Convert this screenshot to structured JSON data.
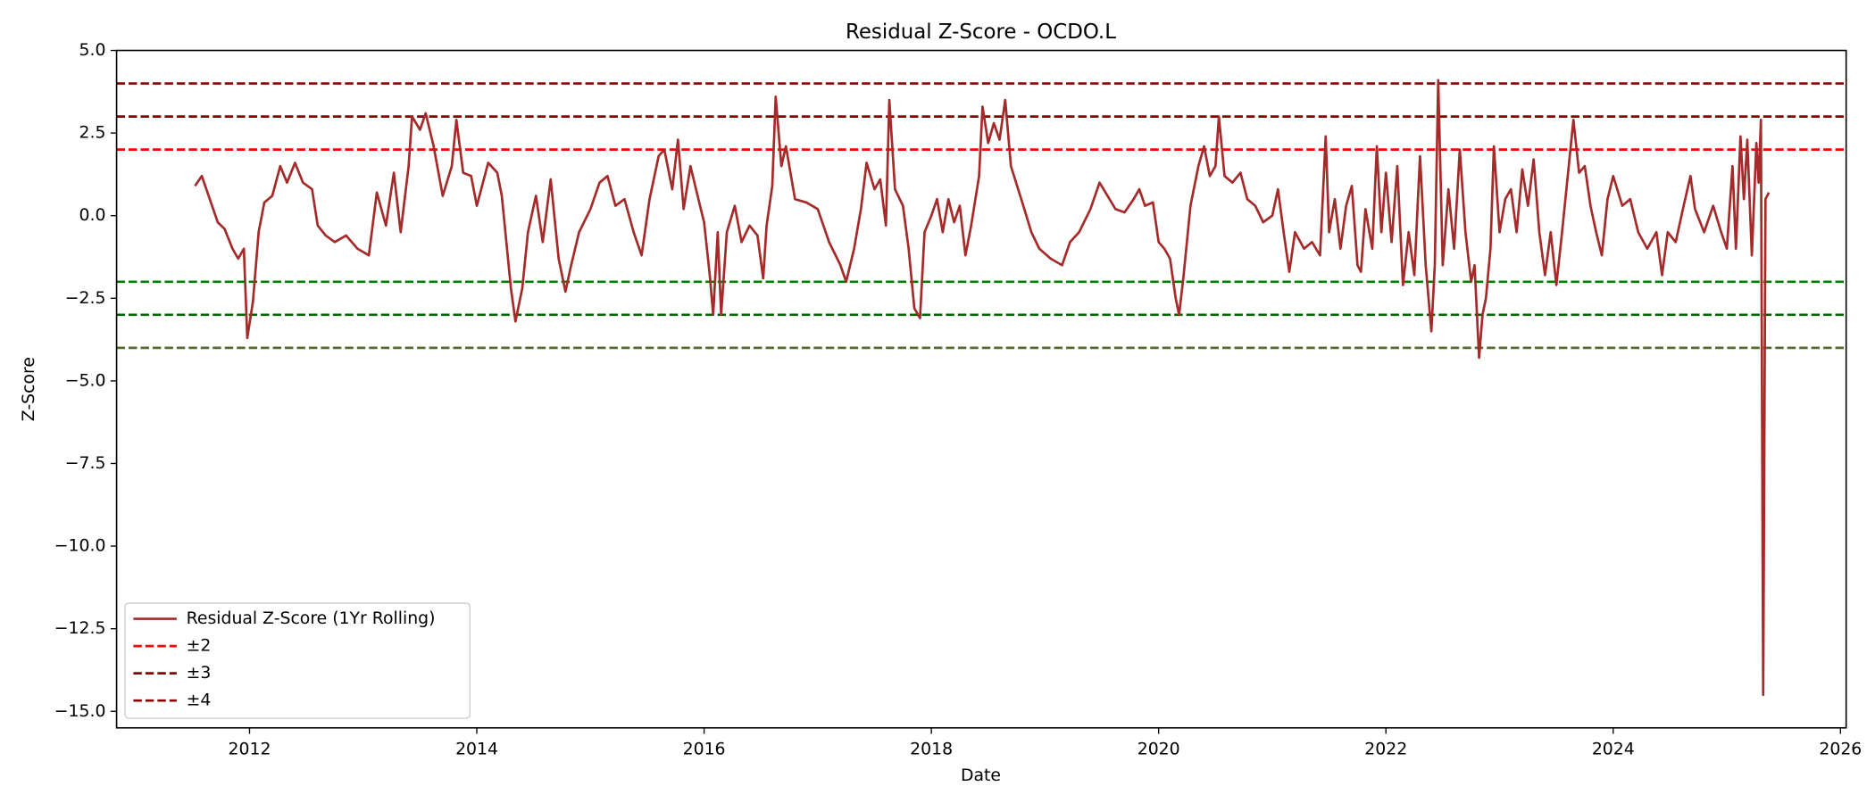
{
  "chart_data": {
    "type": "line",
    "title": "Residual Z-Score - OCDO.L",
    "xlabel": "Date",
    "ylabel": "Z-Score",
    "xlim": [
      2010.83,
      2026.05
    ],
    "xticks": [
      2012,
      2014,
      2016,
      2018,
      2020,
      2022,
      2024,
      2026
    ],
    "ylim": [
      -15.5,
      5
    ],
    "yticks": [
      {
        "value": 5,
        "label": "5.0"
      },
      {
        "value": 2.5,
        "label": "2.5"
      },
      {
        "value": 0,
        "label": "0.0"
      },
      {
        "value": -2.5,
        "label": "−2.5"
      },
      {
        "value": -5,
        "label": "−5.0"
      },
      {
        "value": -7.5,
        "label": "−7.5"
      },
      {
        "value": -10,
        "label": "−10.0"
      },
      {
        "value": -12.5,
        "label": "−12.5"
      },
      {
        "value": -15,
        "label": "−15.0"
      }
    ],
    "grid": false,
    "legend": "lower left",
    "x": [
      2011.52,
      2011.58,
      2011.65,
      2011.72,
      2011.78,
      2011.85,
      2011.9,
      2011.95,
      2011.98,
      2012.03,
      2012.08,
      2012.13,
      2012.2,
      2012.27,
      2012.33,
      2012.4,
      2012.47,
      2012.55,
      2012.6,
      2012.67,
      2012.75,
      2012.85,
      2012.95,
      2013.05,
      2013.12,
      2013.2,
      2013.27,
      2013.33,
      2013.4,
      2013.43,
      2013.5,
      2013.55,
      2013.62,
      2013.7,
      2013.78,
      2013.82,
      2013.88,
      2013.95,
      2014.0,
      2014.1,
      2014.18,
      2014.22,
      2014.26,
      2014.3,
      2014.34,
      2014.4,
      2014.45,
      2014.52,
      2014.58,
      2014.65,
      2014.72,
      2014.78,
      2014.83,
      2014.9,
      2015.0,
      2015.08,
      2015.15,
      2015.22,
      2015.3,
      2015.38,
      2015.45,
      2015.52,
      2015.6,
      2015.65,
      2015.72,
      2015.77,
      2015.82,
      2015.88,
      2015.95,
      2016.0,
      2016.05,
      2016.08,
      2016.12,
      2016.15,
      2016.2,
      2016.27,
      2016.33,
      2016.4,
      2016.47,
      2016.52,
      2016.55,
      2016.6,
      2016.63,
      2016.68,
      2016.72,
      2016.8,
      2016.9,
      2017.0,
      2017.05,
      2017.1,
      2017.2,
      2017.25,
      2017.32,
      2017.38,
      2017.43,
      2017.5,
      2017.55,
      2017.6,
      2017.63,
      2017.68,
      2017.75,
      2017.8,
      2017.85,
      2017.9,
      2017.94,
      2018.0,
      2018.05,
      2018.1,
      2018.15,
      2018.2,
      2018.25,
      2018.3,
      2018.35,
      2018.42,
      2018.45,
      2018.5,
      2018.55,
      2018.6,
      2018.65,
      2018.7,
      2018.8,
      2018.88,
      2018.95,
      2019.05,
      2019.15,
      2019.22,
      2019.3,
      2019.4,
      2019.48,
      2019.55,
      2019.62,
      2019.7,
      2019.78,
      2019.83,
      2019.88,
      2019.95,
      2020.0,
      2020.05,
      2020.1,
      2020.15,
      2020.18,
      2020.22,
      2020.28,
      2020.35,
      2020.4,
      2020.45,
      2020.5,
      2020.53,
      2020.58,
      2020.65,
      2020.72,
      2020.78,
      2020.85,
      2020.92,
      2021.0,
      2021.05,
      2021.1,
      2021.15,
      2021.2,
      2021.28,
      2021.35,
      2021.42,
      2021.47,
      2021.5,
      2021.55,
      2021.6,
      2021.65,
      2021.7,
      2021.75,
      2021.78,
      2021.82,
      2021.88,
      2021.92,
      2021.96,
      2022.0,
      2022.05,
      2022.1,
      2022.15,
      2022.2,
      2022.25,
      2022.3,
      2022.35,
      2022.4,
      2022.43,
      2022.46,
      2022.5,
      2022.55,
      2022.6,
      2022.65,
      2022.7,
      2022.75,
      2022.78,
      2022.82,
      2022.85,
      2022.88,
      2022.92,
      2022.95,
      2023.0,
      2023.05,
      2023.1,
      2023.15,
      2023.2,
      2023.25,
      2023.3,
      2023.35,
      2023.4,
      2023.45,
      2023.5,
      2023.55,
      2023.6,
      2023.65,
      2023.7,
      2023.75,
      2023.8,
      2023.85,
      2023.9,
      2023.95,
      2024.0,
      2024.08,
      2024.15,
      2024.22,
      2024.3,
      2024.38,
      2024.43,
      2024.48,
      2024.55,
      2024.62,
      2024.68,
      2024.72,
      2024.8,
      2024.88,
      2024.95,
      2025.0,
      2025.05,
      2025.08,
      2025.12,
      2025.15,
      2025.18,
      2025.22,
      2025.26,
      2025.28,
      2025.3,
      2025.32,
      2025.34,
      2025.37
    ],
    "series": [
      {
        "name": "Residual Z-Score (1Yr Rolling)",
        "color": "#a52a2a",
        "values": [
          0.9,
          1.2,
          0.5,
          -0.2,
          -0.4,
          -1.0,
          -1.3,
          -1.0,
          -3.7,
          -2.6,
          -0.5,
          0.4,
          0.6,
          1.5,
          1.0,
          1.6,
          1.0,
          0.8,
          -0.3,
          -0.6,
          -0.8,
          -0.6,
          -1.0,
          -1.2,
          0.7,
          -0.3,
          1.3,
          -0.5,
          1.5,
          3.0,
          2.6,
          3.1,
          2.1,
          0.6,
          1.5,
          2.9,
          1.3,
          1.2,
          0.3,
          1.6,
          1.3,
          0.6,
          -0.8,
          -2.2,
          -3.2,
          -2.2,
          -0.5,
          0.6,
          -0.8,
          1.1,
          -1.3,
          -2.3,
          -1.5,
          -0.5,
          0.2,
          1.0,
          1.2,
          0.3,
          0.5,
          -0.5,
          -1.2,
          0.5,
          1.8,
          2.0,
          0.8,
          2.3,
          0.2,
          1.5,
          0.5,
          -0.2,
          -1.8,
          -3.0,
          -0.5,
          -3.0,
          -0.5,
          0.3,
          -0.8,
          -0.3,
          -0.6,
          -1.9,
          -0.3,
          0.9,
          3.6,
          1.5,
          2.1,
          0.5,
          0.4,
          0.2,
          -0.3,
          -0.8,
          -1.5,
          -2.0,
          -1.0,
          0.2,
          1.6,
          0.8,
          1.1,
          -0.3,
          3.5,
          0.8,
          0.3,
          -1.0,
          -2.8,
          -3.1,
          -0.5,
          0.0,
          0.5,
          -0.5,
          0.5,
          -0.2,
          0.3,
          -1.2,
          -0.3,
          1.2,
          3.3,
          2.2,
          2.8,
          2.3,
          3.5,
          1.5,
          0.4,
          -0.5,
          -1.0,
          -1.3,
          -1.5,
          -0.8,
          -0.5,
          0.2,
          1.0,
          0.6,
          0.2,
          0.1,
          0.5,
          0.8,
          0.3,
          0.4,
          -0.8,
          -1.0,
          -1.3,
          -2.5,
          -3.0,
          -1.8,
          0.3,
          1.5,
          2.1,
          1.2,
          1.5,
          3.0,
          1.2,
          1.0,
          1.3,
          0.5,
          0.3,
          -0.2,
          0.0,
          0.8,
          -0.5,
          -1.7,
          -0.5,
          -1.0,
          -0.8,
          -1.2,
          2.4,
          -0.5,
          0.5,
          -1.0,
          0.3,
          0.9,
          -1.5,
          -1.7,
          0.2,
          -1.0,
          2.1,
          -0.5,
          1.3,
          -0.8,
          1.5,
          -2.1,
          -0.5,
          -1.8,
          1.8,
          -1.5,
          -3.5,
          -1.5,
          4.1,
          -1.5,
          0.8,
          -1.0,
          2.0,
          -0.5,
          -2.0,
          -1.5,
          -4.3,
          -3.0,
          -2.5,
          -1.0,
          2.1,
          -0.5,
          0.5,
          0.8,
          -0.5,
          1.4,
          0.3,
          1.7,
          -0.5,
          -1.8,
          -0.5,
          -2.1,
          -0.5,
          1.2,
          2.9,
          1.3,
          1.5,
          0.3,
          -0.5,
          -1.2,
          0.5,
          1.2,
          0.3,
          0.5,
          -0.5,
          -1.0,
          -0.5,
          -1.8,
          -0.5,
          -0.8,
          0.3,
          1.2,
          0.2,
          -0.5,
          0.3,
          -0.5,
          -1.0,
          1.5,
          -1.0,
          2.4,
          0.5,
          2.3,
          -1.2,
          2.2,
          1.0,
          2.9,
          -14.5,
          0.5,
          0.7
        ]
      }
    ],
    "reference_lines": [
      {
        "name": "±2",
        "values": [
          2,
          -2
        ],
        "colors": [
          "red",
          "green"
        ]
      },
      {
        "name": "±3",
        "values": [
          3,
          -3
        ],
        "colors": [
          "darkred",
          "darkgreen"
        ]
      },
      {
        "name": "±4",
        "values": [
          4,
          -4
        ],
        "colors": [
          "darkred",
          "darkolivegreen"
        ]
      }
    ]
  }
}
